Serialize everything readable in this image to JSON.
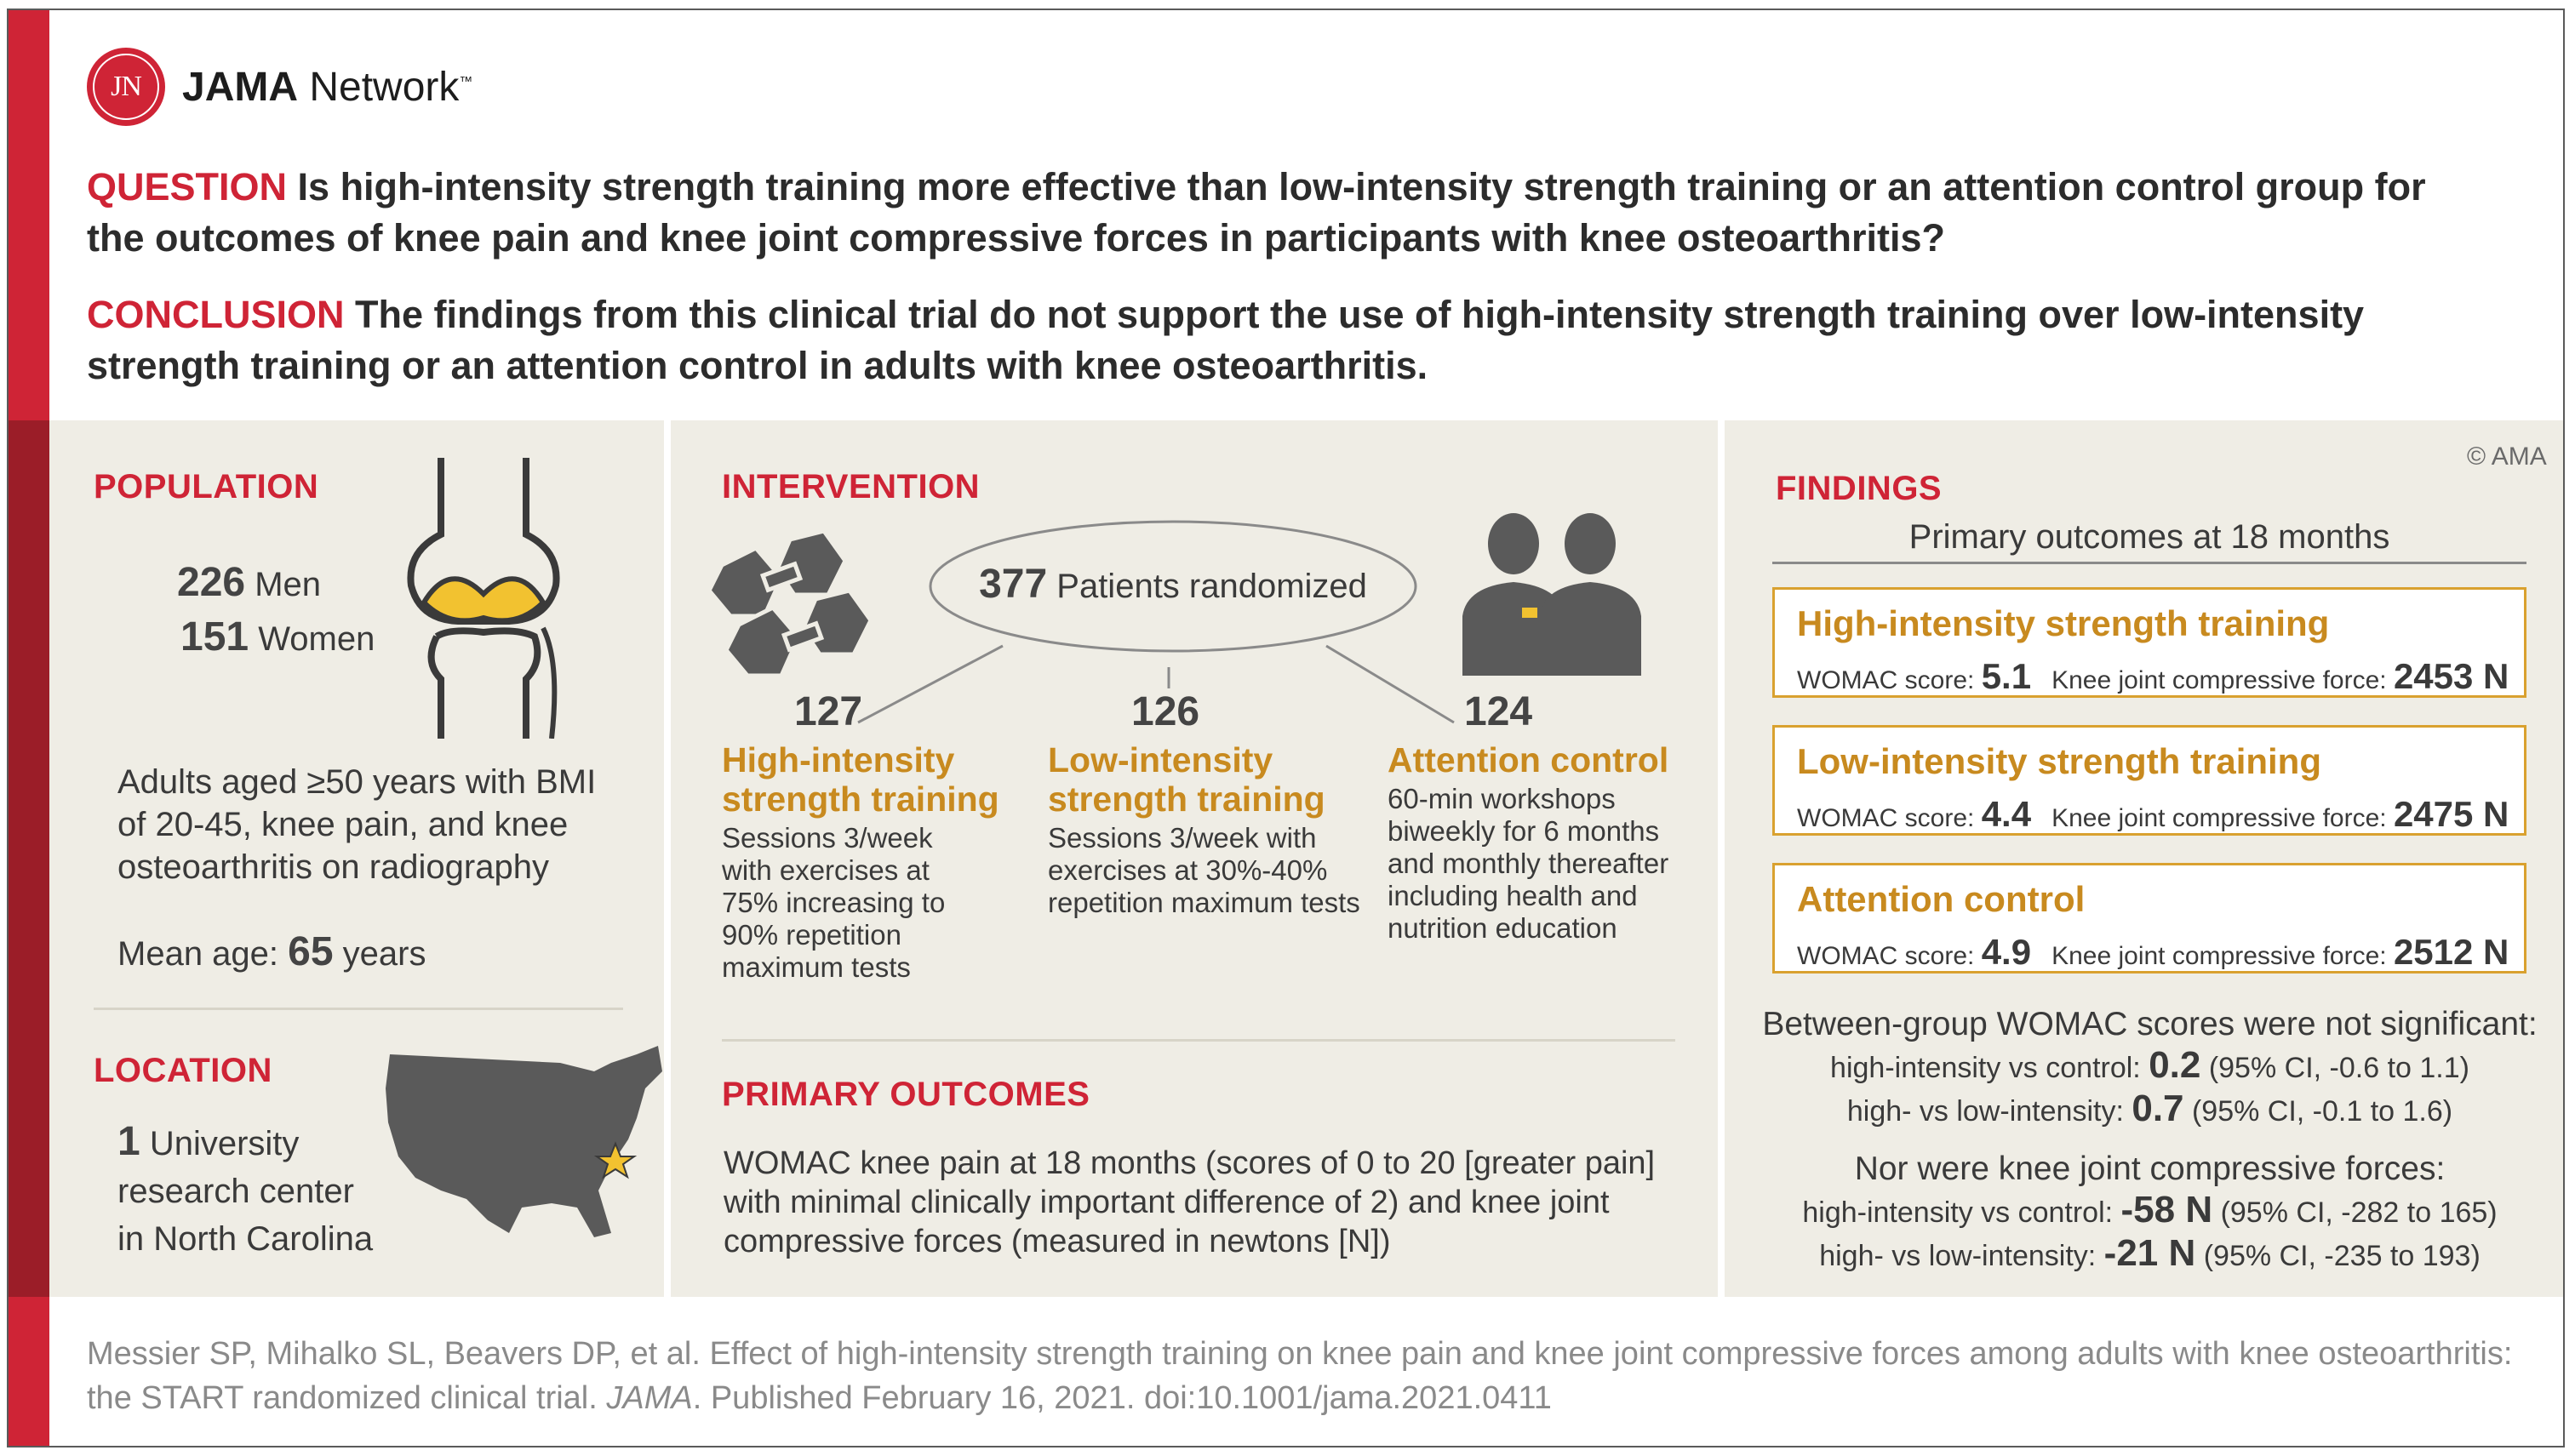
{
  "brand": {
    "logo_initials": "JN",
    "name_bold": "JAMA",
    "name_rest": " Network",
    "tm": "™"
  },
  "question": {
    "label": "QUESTION",
    "text": " Is high-intensity strength training more effective than low-intensity strength training or an attention control group for the outcomes of knee pain and knee joint compressive forces in participants with knee osteoarthritis?"
  },
  "conclusion": {
    "label": "CONCLUSION",
    "text": " The findings from this clinical trial do not support the use of high-intensity strength training over low-intensity strength training or an attention control in adults with knee osteoarthritis."
  },
  "population": {
    "heading": "POPULATION",
    "men_count": "226",
    "men_label": "Men",
    "women_count": "151",
    "women_label": "Women",
    "criteria": "Adults aged ≥50 years with BMI of 20-45, knee pain, and knee osteoarthritis on radiography",
    "mean_age_label": "Mean age: ",
    "mean_age_value": "65",
    "mean_age_unit": " years"
  },
  "location": {
    "heading": "LOCATION",
    "count": "1",
    "line1": " University",
    "line2": "research center",
    "line3": "in North Carolina"
  },
  "intervention": {
    "heading": "INTERVENTION",
    "randomized_count": "377",
    "randomized_label": " Patients randomized",
    "arms": [
      {
        "n": "127",
        "title1": "High-intensity",
        "title2": "strength training",
        "desc": "Sessions 3/week with exercises at 75% increasing to 90% repetition maximum tests"
      },
      {
        "n": "126",
        "title1": "Low-intensity",
        "title2": "strength training",
        "desc": "Sessions 3/week with exercises at 30%-40% repetition maximum tests"
      },
      {
        "n": "124",
        "title1": "Attention control",
        "title2": "",
        "desc": "60-min workshops biweekly for 6 months and monthly thereafter including health and nutrition education"
      }
    ]
  },
  "primary_outcomes": {
    "heading": "PRIMARY OUTCOMES",
    "text": "WOMAC knee pain at 18 months (scores of 0 to 20 [greater pain] with minimal clinically important difference of 2) and knee joint compressive forces (measured in newtons [N])"
  },
  "findings": {
    "copyright": "© AMA",
    "heading": "FINDINGS",
    "subheading": "Primary outcomes at 18 months",
    "womac_label": "WOMAC score: ",
    "force_label": "Knee joint compressive force: ",
    "groups": [
      {
        "name": "High-intensity strength training",
        "womac": "5.1",
        "force": "2453 N"
      },
      {
        "name": "Low-intensity strength training",
        "womac": "4.4",
        "force": "2475 N"
      },
      {
        "name": "Attention control",
        "womac": "4.9",
        "force": "2512 N"
      }
    ],
    "womac_diff_heading": "Between-group WOMAC scores were not significant:",
    "womac_diff": [
      {
        "label": "high-intensity vs control: ",
        "value": "0.2",
        "ci": " (95% CI, -0.6 to 1.1)"
      },
      {
        "label": "high- vs low-intensity: ",
        "value": "0.7",
        "ci": " (95% CI, -0.1 to 1.6)"
      }
    ],
    "force_diff_heading": "Nor were knee joint compressive forces:",
    "force_diff": [
      {
        "label": "high-intensity vs control: ",
        "value": "-58 N",
        "ci": " (95% CI, -282 to 165)"
      },
      {
        "label": "high- vs low-intensity: ",
        "value": "-21 N",
        "ci": " (95% CI, -235 to 193)"
      }
    ]
  },
  "citation": {
    "text1": "Messier SP, Mihalko SL, Beavers DP, et al. Effect of high-intensity strength training on knee pain and knee joint compressive forces among adults with knee osteoarthritis:",
    "text2a": "the START randomized clinical trial. ",
    "journal": "JAMA",
    "text2b": ". Published February 16, 2021. doi:10.1001/jama.2021.0411"
  }
}
